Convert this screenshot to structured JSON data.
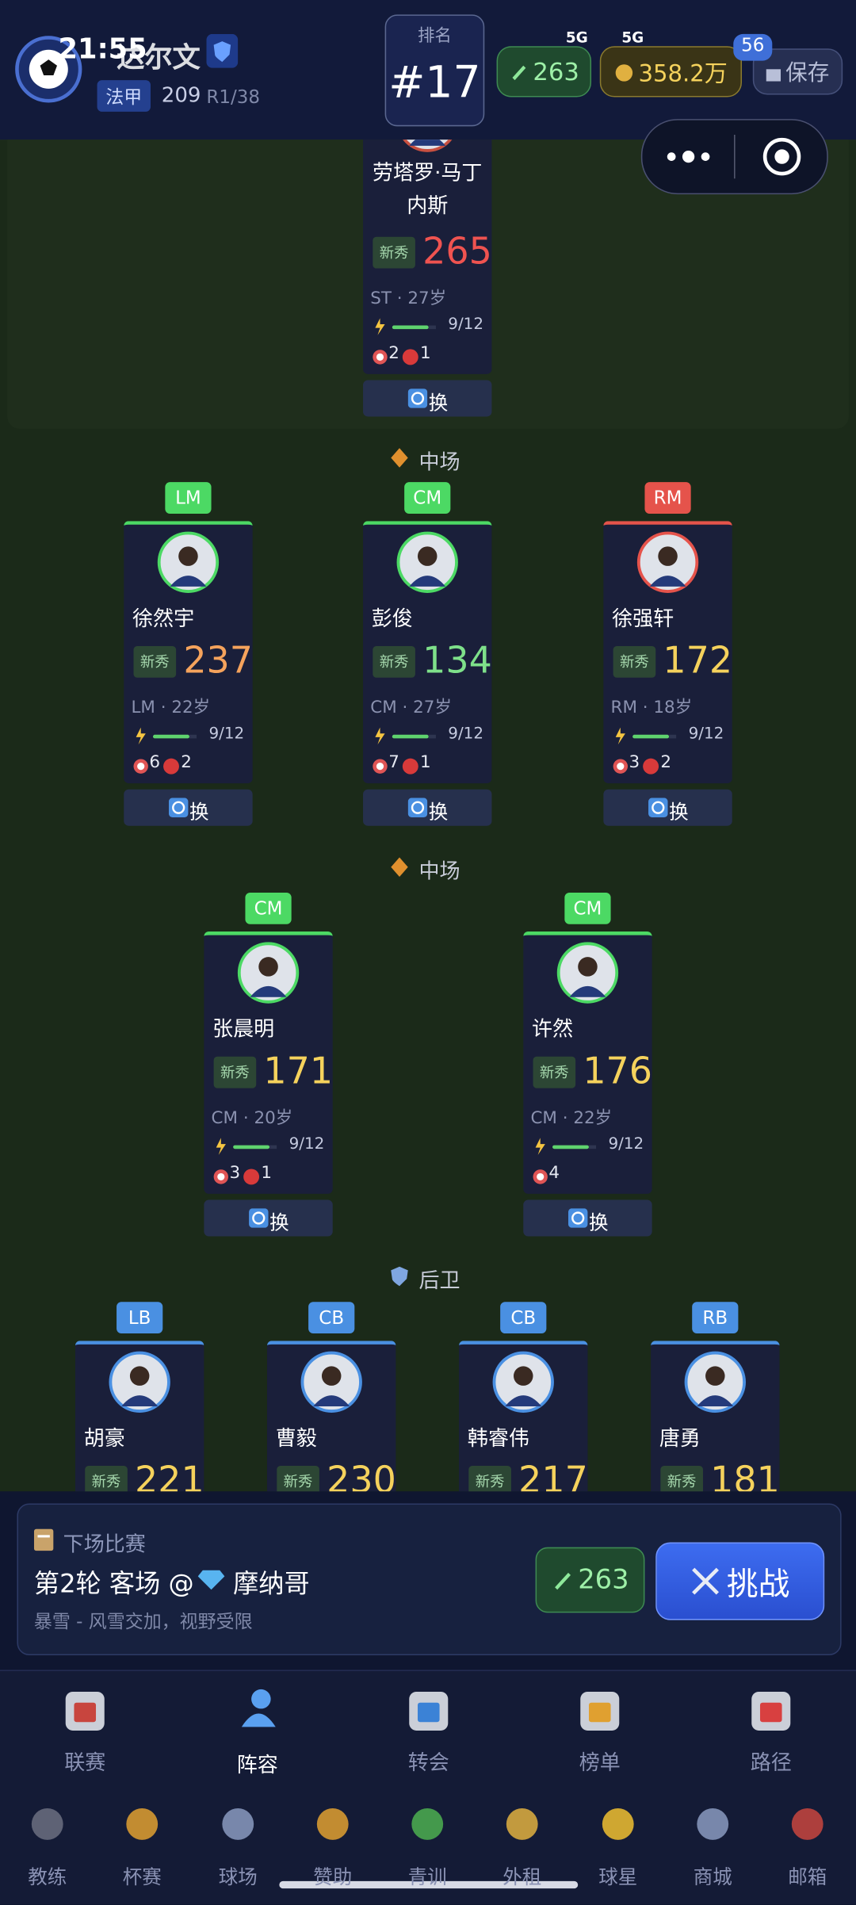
{
  "status_bar": {
    "time": "21:55",
    "network": [
      "5G",
      "5G"
    ],
    "battery": "56"
  },
  "header": {
    "team": "达尔文",
    "league": "法甲",
    "points": "209",
    "round": "R1/38",
    "rank_label": "排名",
    "rank": "#17",
    "energy": "263",
    "money": "358.2万",
    "save": "保存"
  },
  "pitch": {
    "tag_label": "新秀",
    "swap_label": "换",
    "forward": {
      "name": "劳塔罗·马丁内斯",
      "rating": 265,
      "rating_color": "#ef5350",
      "pos_age": "ST · 27岁",
      "stamina": "9/12",
      "goals": 2,
      "cards": 1
    },
    "sections": [
      {
        "label": "中场",
        "players": [
          {
            "pos": "LM",
            "pos_color": "#4cd964",
            "name": "徐然宇",
            "rating": 237,
            "rating_color": "#f5a35c",
            "pos_age": "LM · 22岁",
            "stamina": "9/12",
            "goals": 6,
            "cards": 2
          },
          {
            "pos": "CM",
            "pos_color": "#4cd964",
            "name": "彭俊",
            "rating": 134,
            "rating_color": "#7ee08a",
            "pos_age": "CM · 27岁",
            "stamina": "9/12",
            "goals": 7,
            "cards": 1
          },
          {
            "pos": "RM",
            "pos_color": "#e5534b",
            "name": "徐强轩",
            "rating": 172,
            "rating_color": "#f5d25c",
            "pos_age": "RM · 18岁",
            "stamina": "9/12",
            "goals": 3,
            "cards": 2
          }
        ]
      },
      {
        "label": "中场",
        "players": [
          {
            "pos": "CM",
            "pos_color": "#4cd964",
            "name": "张晨明",
            "rating": 171,
            "rating_color": "#f5d25c",
            "pos_age": "CM · 20岁",
            "stamina": "9/12",
            "goals": 3,
            "cards": 1
          },
          {
            "pos": "CM",
            "pos_color": "#4cd964",
            "name": "许然",
            "rating": 176,
            "rating_color": "#f5d25c",
            "pos_age": "CM · 22岁",
            "stamina": "9/12",
            "goals": 4
          }
        ]
      },
      {
        "label": "后卫",
        "players": [
          {
            "pos": "LB",
            "pos_color": "#4a90e2",
            "name": "胡豪",
            "rating": 221,
            "rating_color": "#f5d25c"
          },
          {
            "pos": "CB",
            "pos_color": "#4a90e2",
            "name": "曹毅",
            "rating": 230,
            "rating_color": "#f5d25c"
          },
          {
            "pos": "CB",
            "pos_color": "#4a90e2",
            "name": "韩睿伟",
            "rating": 217,
            "rating_color": "#f5d25c"
          },
          {
            "pos": "RB",
            "pos_color": "#4a90e2",
            "name": "唐勇",
            "rating": 181,
            "rating_color": "#f5d25c"
          }
        ]
      }
    ]
  },
  "next_match": {
    "title": "下场比赛",
    "fixture": "第2轮 客场 @",
    "opponent": "摩纳哥",
    "weather": "暴雪 - 风雪交加，视野受限",
    "energy": "263",
    "challenge": "挑战"
  },
  "nav": {
    "main": [
      "联赛",
      "阵容",
      "转会",
      "榜单",
      "路径"
    ],
    "active": 1,
    "more": [
      "教练",
      "杯赛",
      "球场",
      "赞助",
      "青训",
      "外租",
      "球星",
      "商城",
      "邮箱"
    ]
  }
}
